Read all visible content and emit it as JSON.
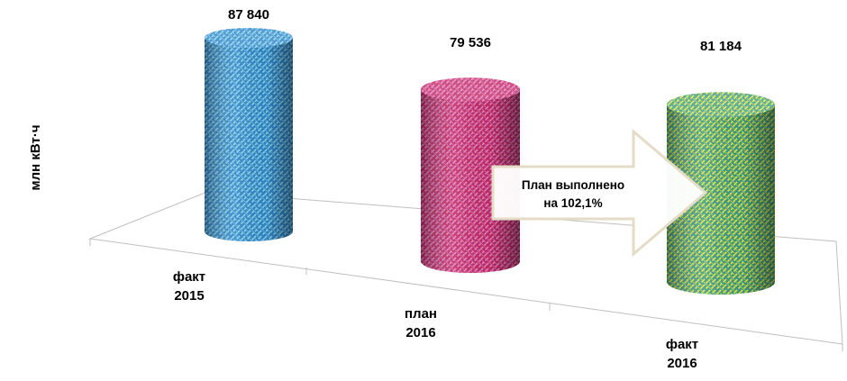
{
  "chart_data": {
    "type": "bar",
    "style": "3d-cylinder",
    "ylabel": "млн кВт·ч",
    "categories": [
      [
        "факт",
        "2015"
      ],
      [
        "план",
        "2016"
      ],
      [
        "факт",
        "2016"
      ]
    ],
    "values": [
      87840,
      79536,
      81184
    ],
    "value_labels": [
      "87 840",
      "79 536",
      "81 184"
    ],
    "bar_colors": [
      "#2f86c8",
      "#c42a63",
      "#3f9a86"
    ],
    "pattern_colors": [
      "#8fd8f0",
      "#e58ad0",
      "#e8f040"
    ],
    "annotation": {
      "text": [
        "План выполнено",
        "на 102,1%"
      ],
      "shape": "right-arrow",
      "fill": "#ffffff",
      "border": "#e4dcc6"
    },
    "grid": false,
    "legend": "none"
  }
}
